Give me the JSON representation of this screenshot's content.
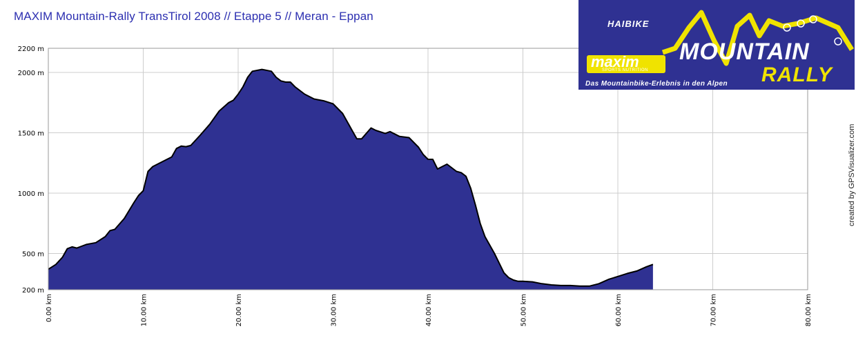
{
  "page": {
    "title": "MAXIM Mountain-Rally TransTirol 2008 // Etappe 5 // Meran - Eppan"
  },
  "logo": {
    "haibike": "HAIBIKE",
    "maxim": "maxim",
    "maxim_sub": "SPORTS NUTRITION",
    "mountain": "MOUNTAIN",
    "rally": "RALLY",
    "tagline": "Das Mountainbike-Erlebnis in den Alpen"
  },
  "credit": "created by GPSVisualizer.com",
  "chart_data": {
    "type": "area",
    "title": "MAXIM Mountain-Rally TransTirol 2008 // Etappe 5 // Meran - Eppan",
    "xlabel": "",
    "ylabel": "",
    "xlim": [
      0,
      80
    ],
    "ylim": [
      200,
      2200
    ],
    "x_ticks": [
      0,
      10,
      20,
      30,
      40,
      50,
      60,
      70,
      80
    ],
    "x_tick_labels": [
      "0.00 km",
      "10.00 km",
      "20.00 km",
      "30.00 km",
      "40.00 km",
      "50.00 km",
      "60.00 km",
      "70.00 km",
      "80.00 km"
    ],
    "y_ticks": [
      200,
      500,
      1000,
      1500,
      2000,
      2200
    ],
    "y_tick_labels": [
      "200 m",
      "500 m",
      "1000 m",
      "1500 m",
      "2000 m",
      "2200 m"
    ],
    "grid": true,
    "fill_color": "#2f3192",
    "line_color": "#000000",
    "series": [
      {
        "x": [
          0,
          0.8,
          1.5,
          2.0,
          2.5,
          3.0,
          3.5,
          4.0,
          5.0,
          6.0,
          6.5,
          7.0,
          8.0,
          9.0,
          9.5,
          10.0,
          10.5,
          11.0,
          12.0,
          13.0,
          13.5,
          14.0,
          14.5,
          15.0,
          16.0,
          17.0,
          18.0,
          19.0,
          19.5,
          20.0,
          20.5,
          21.0,
          21.5,
          22.5,
          23.5,
          24.0,
          24.5,
          25.0,
          25.5,
          26.0,
          27.0,
          28.0,
          29.0,
          30.0,
          31.0,
          32.0,
          32.5,
          33.0,
          34.0,
          34.5,
          35.5,
          36.0,
          37.0,
          38.0,
          39.0,
          39.5,
          40.0,
          40.5,
          41.0,
          41.5,
          42.0,
          43.0,
          43.5,
          44.0,
          44.5,
          45.0,
          45.5,
          46.0,
          47.0,
          48.0,
          48.5,
          49.0,
          49.5,
          50.0,
          51.0,
          52.0,
          53.0,
          54.0,
          55.0,
          56.0,
          57.0,
          58.0,
          59.0,
          60.0,
          61.0,
          62.0,
          63.0,
          63.7
        ],
        "y": [
          370,
          410,
          470,
          540,
          555,
          545,
          560,
          575,
          590,
          640,
          690,
          700,
          790,
          920,
          980,
          1020,
          1180,
          1220,
          1260,
          1300,
          1370,
          1390,
          1385,
          1395,
          1480,
          1570,
          1680,
          1750,
          1770,
          1820,
          1880,
          1960,
          2010,
          2025,
          2010,
          1960,
          1930,
          1920,
          1920,
          1880,
          1820,
          1780,
          1765,
          1740,
          1660,
          1520,
          1450,
          1450,
          1540,
          1520,
          1495,
          1510,
          1470,
          1460,
          1380,
          1320,
          1280,
          1280,
          1200,
          1220,
          1240,
          1180,
          1170,
          1140,
          1040,
          900,
          750,
          640,
          500,
          340,
          300,
          280,
          270,
          270,
          265,
          250,
          240,
          235,
          235,
          230,
          230,
          250,
          285,
          310,
          335,
          355,
          390,
          410
        ]
      }
    ]
  }
}
